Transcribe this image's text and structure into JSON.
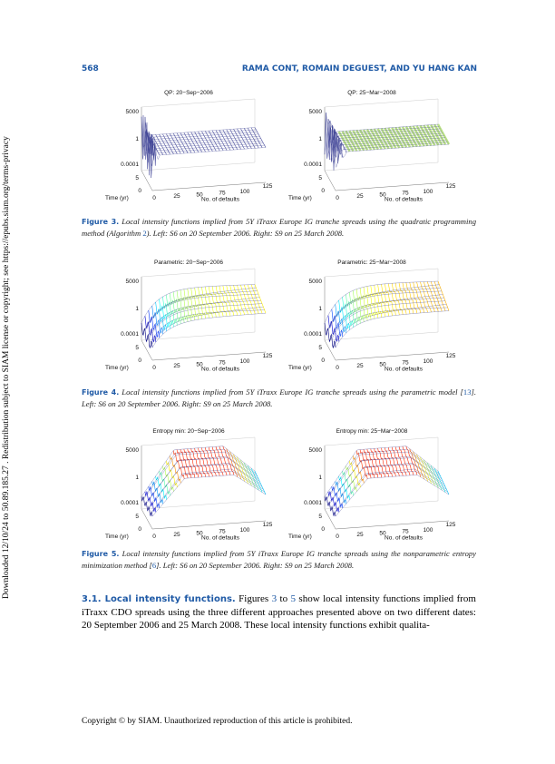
{
  "header": {
    "page_number": "568",
    "running_title": "RAMA CONT, ROMAIN DEGUEST, AND YU HANG KAN"
  },
  "side_note": "Downloaded 12/10/24 to 50.89.185.27 . Redistribution subject to SIAM license or copyright; see https://epubs.siam.org/terms-privacy",
  "axes": {
    "z_ticks": [
      "5000",
      "1",
      "0.0001"
    ],
    "time_label": "Time (yr)",
    "time_ticks": [
      "5",
      "0"
    ],
    "x_ticks": [
      "0",
      "25",
      "50",
      "75",
      "100",
      "125"
    ],
    "x_label": "No. of defaults"
  },
  "figures": [
    {
      "panels": [
        {
          "title": "QP: 20−Sep−2006"
        },
        {
          "title": "QP: 25−Mar−2008"
        }
      ],
      "caption": {
        "label": "Figure 3.",
        "parts": [
          "Local intensity functions implied from 5Y iTraxx Europe IG tranche spreads using the quadratic programming method (Algorithm ",
          "2",
          "). Left: S6 on 20 September 2006. Right: S9 on 25 March 2008."
        ]
      }
    },
    {
      "panels": [
        {
          "title": "Parametric: 20−Sep−2006"
        },
        {
          "title": "Parametric: 25−Mar−2008"
        }
      ],
      "caption": {
        "label": "Figure 4.",
        "parts": [
          "Local intensity functions implied from 5Y iTraxx Europe IG tranche spreads using the parametric model [",
          "13",
          "]. Left: S6 on 20 September 2006. Right: S9 on 25 March 2008."
        ]
      }
    },
    {
      "panels": [
        {
          "title": "Entropy min: 20−Sep−2006"
        },
        {
          "title": "Entropy min: 25−Mar−2008"
        }
      ],
      "caption": {
        "label": "Figure 5.",
        "parts": [
          "Local intensity functions implied from 5Y iTraxx Europe IG tranche spreads using the nonparametric entropy minimization method [",
          "6",
          "]. Left: S6 on 20 September 2006. Right: S9 on 25 March 2008."
        ]
      }
    }
  ],
  "section": {
    "heading": "3.1. Local intensity functions.",
    "parts": [
      " Figures ",
      "3",
      " to ",
      "5",
      " show local intensity functions implied from iTraxx CDO spreads using the three different approaches presented above on two different dates: 20 September 2006 and 25 March 2008. These local intensity functions exhibit qualita-"
    ]
  },
  "footer": "Copyright © by SIAM. Unauthorized reproduction of this article is prohibited."
}
